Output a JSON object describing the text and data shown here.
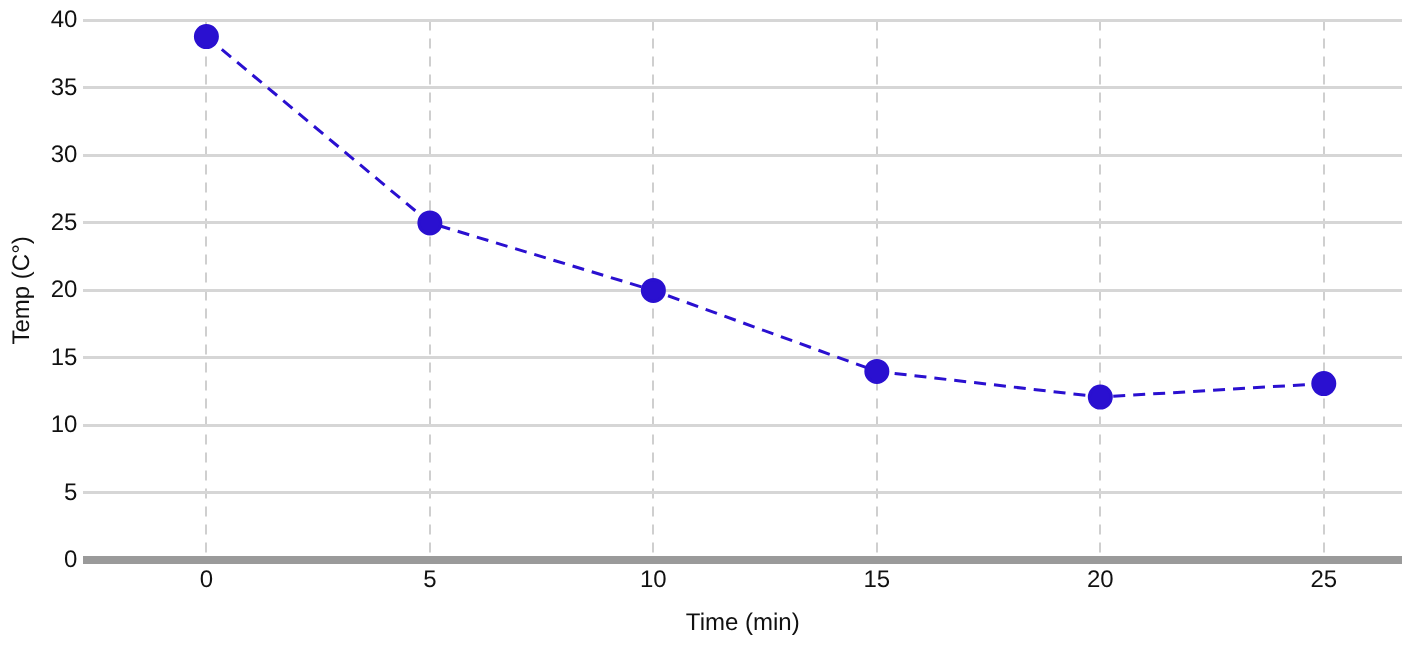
{
  "chart_data": {
    "type": "line",
    "xlabel": "Time (min)",
    "ylabel": "Temp (C°)",
    "x": [
      0,
      5,
      10,
      15,
      20,
      25
    ],
    "series": [
      {
        "color": "#2a10d0",
        "values": [
          38.8,
          25,
          20,
          14,
          12.1,
          13.1
        ]
      }
    ],
    "xlim": [
      -2.75,
      26.75
    ],
    "xticks": [
      0,
      5,
      10,
      15,
      20,
      25
    ],
    "ylim": [
      0,
      40
    ],
    "yticks": [
      0,
      5,
      10,
      15,
      20,
      25,
      30,
      35,
      40
    ],
    "grid": true,
    "legend": false,
    "marker": "circle",
    "line_style": "dashed"
  }
}
